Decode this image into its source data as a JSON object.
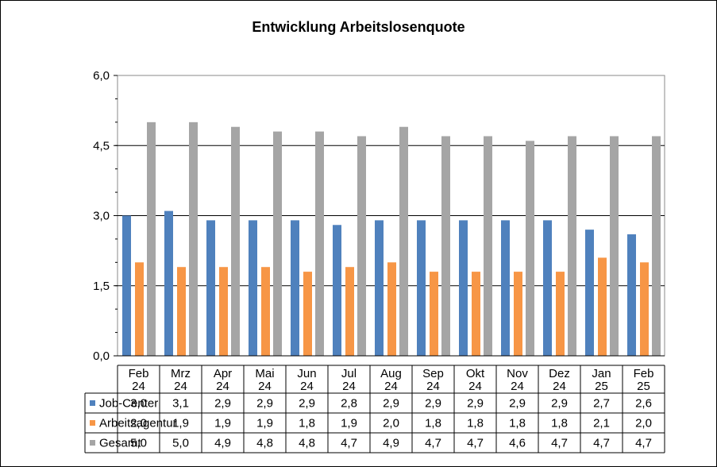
{
  "chart_data": {
    "type": "bar",
    "title": "Entwicklung  Arbeitslosenquote",
    "xlabel": "",
    "ylabel": "",
    "ylim": [
      0,
      6
    ],
    "y_ticks": [
      "0,0",
      "1,5",
      "3,0",
      "4,5",
      "6,0"
    ],
    "y_tick_values": [
      0,
      1.5,
      3,
      4.5,
      6
    ],
    "grid": true,
    "legend_placement": "data-table-left",
    "categories": [
      [
        "Feb",
        "24"
      ],
      [
        "Mrz",
        "24"
      ],
      [
        "Apr",
        "24"
      ],
      [
        "Mai",
        "24"
      ],
      [
        "Jun",
        "24"
      ],
      [
        "Jul",
        "24"
      ],
      [
        "Aug",
        "24"
      ],
      [
        "Sep",
        "24"
      ],
      [
        "Okt",
        "24"
      ],
      [
        "Nov",
        "24"
      ],
      [
        "Dez",
        "24"
      ],
      [
        "Jan",
        "25"
      ],
      [
        "Feb",
        "25"
      ]
    ],
    "series": [
      {
        "name": "Job-Center",
        "color": "#4F81BD",
        "values": [
          3.0,
          3.1,
          2.9,
          2.9,
          2.9,
          2.8,
          2.9,
          2.9,
          2.9,
          2.9,
          2.9,
          2.7,
          2.6
        ],
        "labels": [
          "3,0",
          "3,1",
          "2,9",
          "2,9",
          "2,9",
          "2,8",
          "2,9",
          "2,9",
          "2,9",
          "2,9",
          "2,9",
          "2,7",
          "2,6"
        ]
      },
      {
        "name": "Arbeitsagentur",
        "color": "#F79646",
        "values": [
          2.0,
          1.9,
          1.9,
          1.9,
          1.8,
          1.9,
          2.0,
          1.8,
          1.8,
          1.8,
          1.8,
          2.1,
          2.0
        ],
        "labels": [
          "2,0",
          "1,9",
          "1,9",
          "1,9",
          "1,8",
          "1,9",
          "2,0",
          "1,8",
          "1,8",
          "1,8",
          "1,8",
          "2,1",
          "2,0"
        ]
      },
      {
        "name": "Gesamt",
        "color": "#A5A5A5",
        "values": [
          5.0,
          5.0,
          4.9,
          4.8,
          4.8,
          4.7,
          4.9,
          4.7,
          4.7,
          4.6,
          4.7,
          4.7,
          4.7
        ],
        "labels": [
          "5,0",
          "5,0",
          "4,9",
          "4,8",
          "4,8",
          "4,7",
          "4,9",
          "4,7",
          "4,7",
          "4,6",
          "4,7",
          "4,7",
          "4,7"
        ]
      }
    ]
  }
}
